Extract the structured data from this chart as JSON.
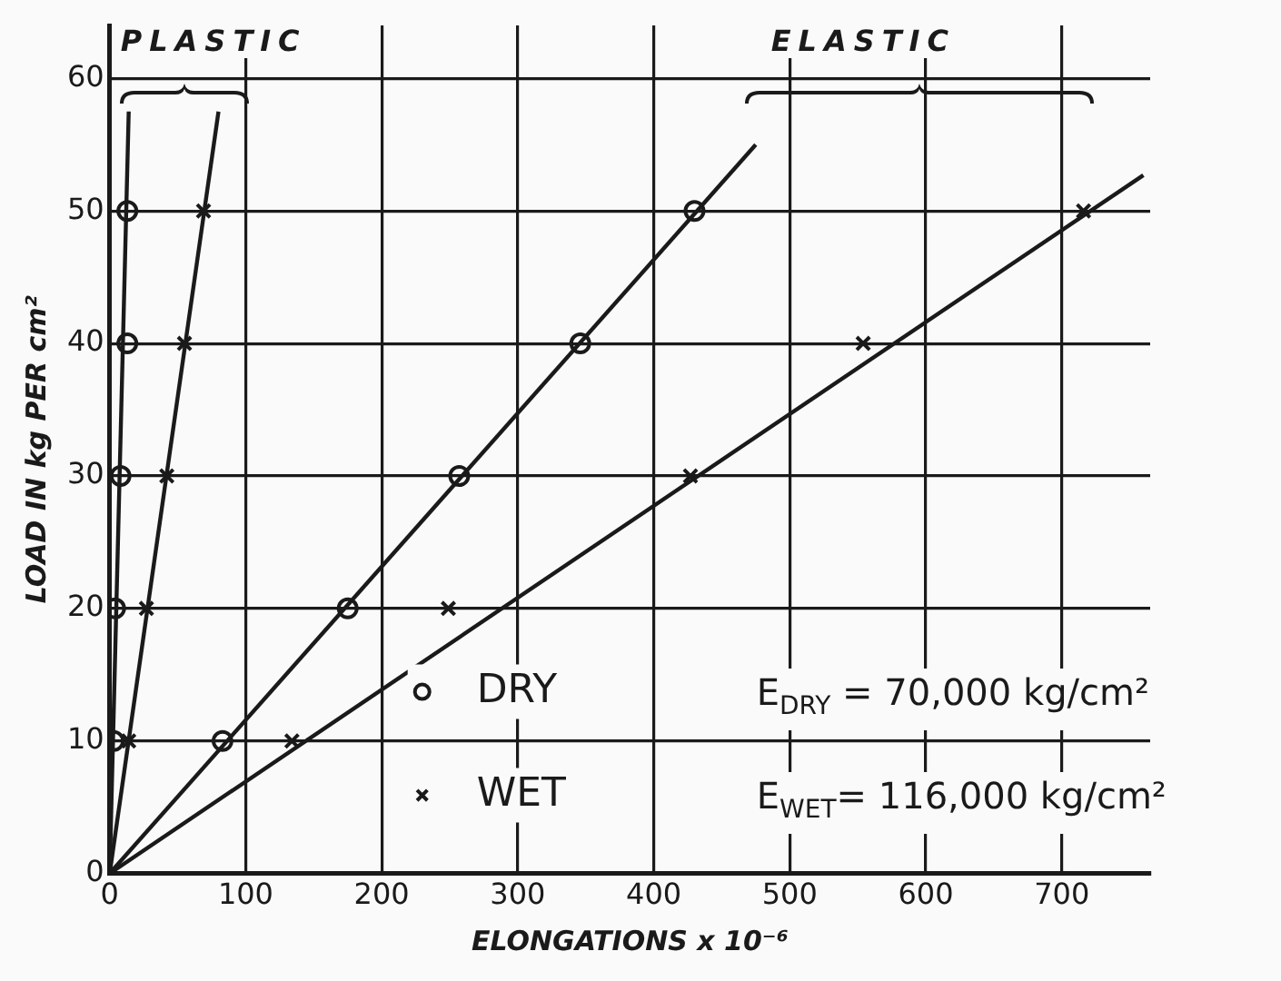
{
  "chart_data": {
    "type": "scatter",
    "xlabel": "ELONGATIONS x 10⁻⁶",
    "ylabel": "LOAD IN kg PER cm²",
    "xlim": [
      0,
      765
    ],
    "ylim": [
      0,
      64
    ],
    "xticks": [
      0,
      100,
      200,
      300,
      400,
      500,
      600,
      700
    ],
    "yticks": [
      0,
      10,
      20,
      30,
      40,
      50,
      60
    ],
    "grid": true,
    "legend": "bottom",
    "series": [
      {
        "name": "DRY",
        "marker": "circle",
        "color": "#1a1a1a",
        "x": [
          3,
          4,
          8,
          13,
          13,
          83,
          175,
          257,
          346,
          430
        ],
        "values": [
          10,
          20,
          30,
          40,
          50,
          10,
          20,
          30,
          40,
          50
        ]
      },
      {
        "name": "WET",
        "marker": "cross",
        "color": "#1a1a1a",
        "x": [
          14,
          27,
          42,
          55,
          69,
          134,
          249,
          427,
          554,
          716
        ],
        "values": [
          10,
          20,
          30,
          40,
          50,
          10,
          20,
          30,
          40,
          50
        ]
      },
      {
        "type": "line",
        "marker": "none",
        "color": "#1a1a1a",
        "x": [
          0,
          14
        ],
        "values": [
          0,
          57.5
        ]
      },
      {
        "type": "line",
        "marker": "none",
        "color": "#1a1a1a",
        "x": [
          0,
          80
        ],
        "values": [
          0,
          57.5
        ]
      },
      {
        "type": "line",
        "marker": "none",
        "color": "#1a1a1a",
        "x": [
          0,
          475
        ],
        "values": [
          0,
          55
        ]
      },
      {
        "type": "line",
        "marker": "none",
        "color": "#1a1a1a",
        "x": [
          0,
          760
        ],
        "values": [
          0,
          52.7
        ]
      }
    ],
    "annotations": [
      "E$_{DRY}$ =  70,000 kg/cm²",
      "E$_{WET}$= 116,000 kg/cm²",
      "PLASTIC",
      "ELASTIC"
    ]
  }
}
